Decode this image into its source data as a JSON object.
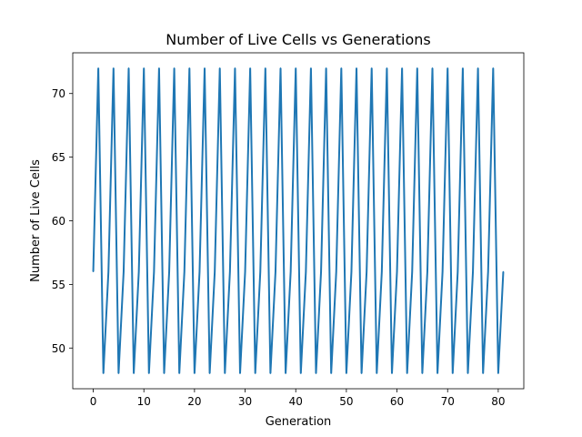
{
  "chart_data": {
    "type": "line",
    "title": "Number of Live Cells vs Generations",
    "xlabel": "Generation",
    "ylabel": "Number of Live Cells",
    "xlim": [
      -4.05,
      85.05
    ],
    "ylim": [
      46.8,
      73.2
    ],
    "xticks": [
      0,
      10,
      20,
      30,
      40,
      50,
      60,
      70,
      80
    ],
    "yticks": [
      50,
      55,
      60,
      65,
      70
    ],
    "grid": false,
    "series": [
      {
        "color": "#1f77b4",
        "x": [
          0,
          1,
          2,
          3,
          4,
          5,
          6,
          7,
          8,
          9,
          10,
          11,
          12,
          13,
          14,
          15,
          16,
          17,
          18,
          19,
          20,
          21,
          22,
          23,
          24,
          25,
          26,
          27,
          28,
          29,
          30,
          31,
          32,
          33,
          34,
          35,
          36,
          37,
          38,
          39,
          40,
          41,
          42,
          43,
          44,
          45,
          46,
          47,
          48,
          49,
          50,
          51,
          52,
          53,
          54,
          55,
          56,
          57,
          58,
          59,
          60,
          61,
          62,
          63,
          64,
          65,
          66,
          67,
          68,
          69,
          70,
          71,
          72,
          73,
          74,
          75,
          76,
          77,
          78,
          79,
          80,
          81
        ],
        "values": [
          56,
          72,
          48,
          56,
          72,
          48,
          56,
          72,
          48,
          56,
          72,
          48,
          56,
          72,
          48,
          56,
          72,
          48,
          56,
          72,
          48,
          56,
          72,
          48,
          56,
          72,
          48,
          56,
          72,
          48,
          56,
          72,
          48,
          56,
          72,
          48,
          56,
          72,
          48,
          56,
          72,
          48,
          56,
          72,
          48,
          56,
          72,
          48,
          56,
          72,
          48,
          56,
          72,
          48,
          56,
          72,
          48,
          56,
          72,
          48,
          56,
          72,
          48,
          56,
          72,
          48,
          56,
          72,
          48,
          56,
          72,
          48,
          56,
          72,
          48,
          56,
          72,
          48,
          56,
          72,
          48,
          56
        ]
      }
    ]
  }
}
